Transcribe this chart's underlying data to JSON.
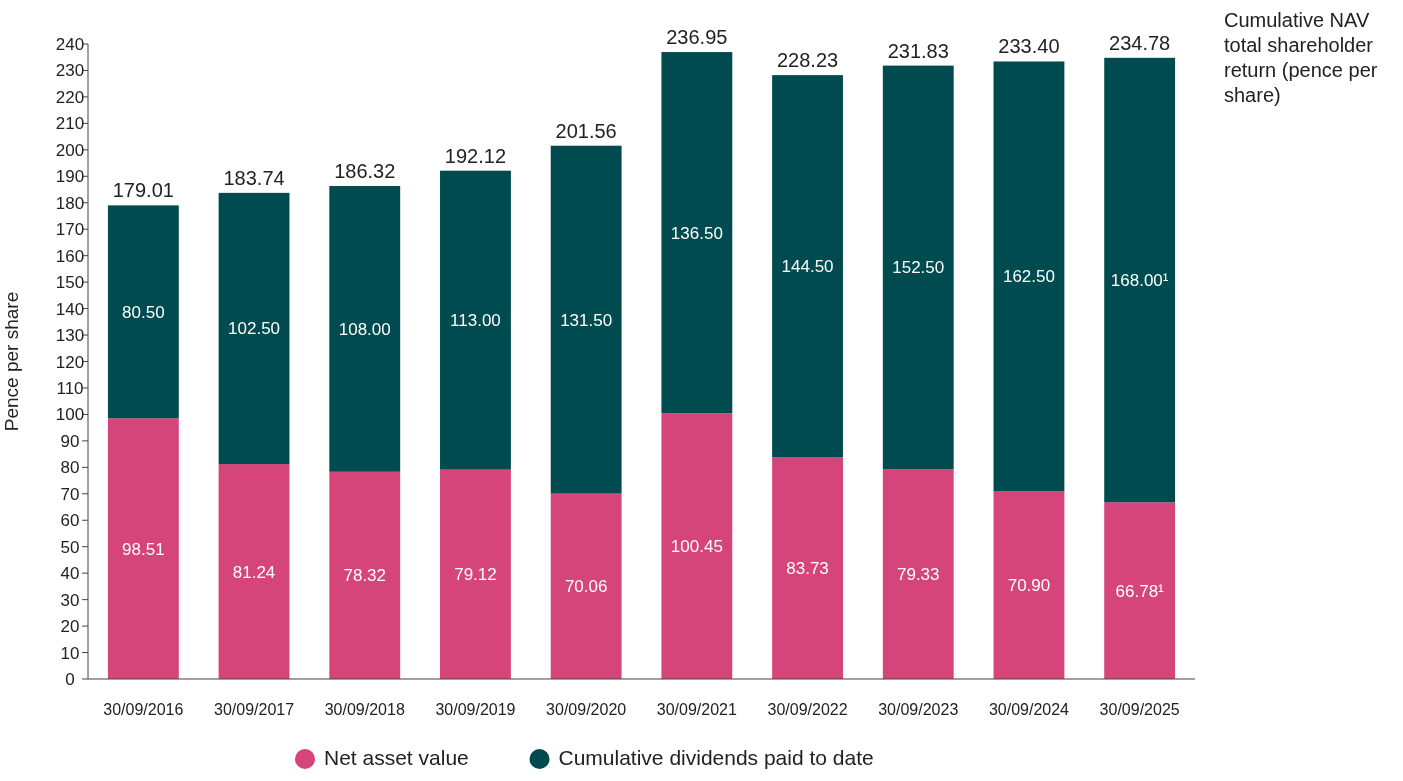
{
  "chart_data": {
    "type": "bar",
    "stacked": true,
    "ylabel": "Pence per share",
    "categories": [
      "30/09/2016",
      "30/09/2017",
      "30/09/2018",
      "30/09/2019",
      "30/09/2020",
      "30/09/2021",
      "30/09/2022",
      "30/09/2023",
      "30/09/2024",
      "30/09/2025"
    ],
    "series": [
      {
        "name": "Net asset value",
        "color": "#d6457a",
        "values": [
          98.51,
          81.24,
          78.32,
          79.12,
          70.06,
          100.45,
          83.73,
          79.33,
          70.9,
          66.78
        ],
        "value_labels": [
          "98.51",
          "81.24",
          "78.32",
          "79.12",
          "70.06",
          "100.45",
          "83.73",
          "79.33",
          "70.90",
          "66.78¹"
        ]
      },
      {
        "name": "Cumulative dividends paid to date",
        "color": "#004b4f",
        "values": [
          80.5,
          102.5,
          108.0,
          113.0,
          131.5,
          136.5,
          144.5,
          152.5,
          162.5,
          168.0
        ],
        "value_labels": [
          "80.50",
          "102.50",
          "108.00",
          "113.00",
          "131.50",
          "136.50",
          "144.50",
          "152.50",
          "162.50",
          "168.00¹"
        ]
      }
    ],
    "totals": [
      "179.01",
      "183.74",
      "186.32",
      "192.12",
      "201.56",
      "236.95",
      "228.23",
      "231.83",
      "233.40",
      "234.78"
    ],
    "annotations": [
      "Cumulative NAV total shareholder return (pence per share)"
    ],
    "ylim": [
      0,
      240
    ],
    "yticks": [
      0,
      10,
      20,
      30,
      40,
      50,
      60,
      70,
      80,
      90,
      100,
      110,
      120,
      130,
      140,
      150,
      160,
      170,
      180,
      190,
      200,
      210,
      220,
      230,
      240
    ],
    "legend": "bottom"
  }
}
